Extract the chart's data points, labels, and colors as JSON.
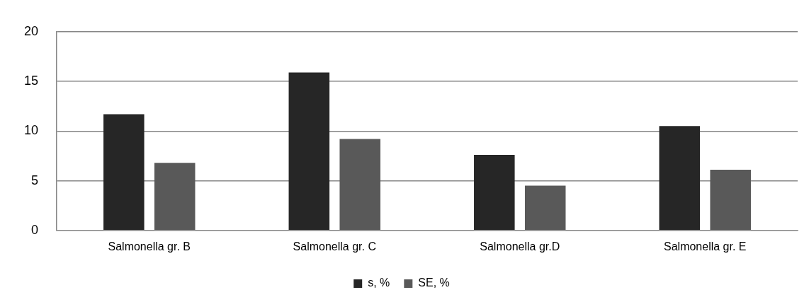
{
  "chart_data": {
    "type": "bar",
    "categories": [
      "Salmonella gr. B",
      "Salmonella gr. C",
      "Salmonella gr.D",
      "Salmonella gr. E"
    ],
    "series": [
      {
        "name": "s, %",
        "color": "#262626",
        "values": [
          11.7,
          15.9,
          7.6,
          10.5
        ]
      },
      {
        "name": "SE, %",
        "color": "#595959",
        "values": [
          6.8,
          9.2,
          4.5,
          6.1
        ]
      }
    ],
    "ylim": [
      0,
      20
    ],
    "yticks": [
      0,
      5,
      10,
      15,
      20
    ],
    "grid": "y",
    "legend": "bottom"
  }
}
